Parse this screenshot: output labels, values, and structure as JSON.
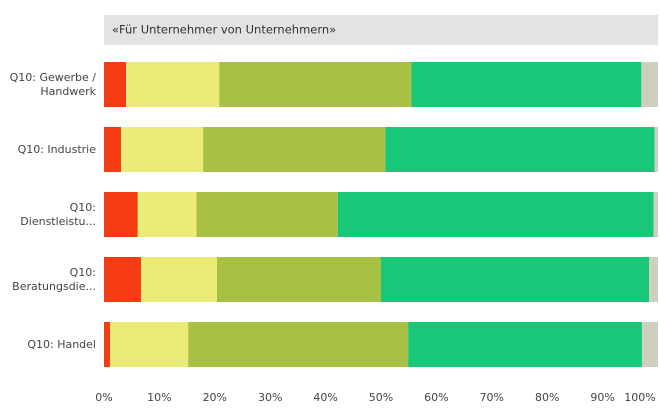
{
  "chart_data": {
    "type": "stacked-bar-horizontal",
    "title": "«Für Unternehmer von Unternehmern»",
    "categories": [
      "Q10: Gewerbe / Handwerk",
      "Q10: Industrie",
      "Q10: Dienstleistu...",
      "Q10: Beratungsdie...",
      "Q10: Handel"
    ],
    "series": [
      {
        "color": "#f53c14",
        "values": [
          4.0,
          3.1,
          6.1,
          6.7,
          1.1
        ]
      },
      {
        "color": "#ebeb78",
        "values": [
          16.8,
          14.8,
          10.6,
          13.7,
          14.1
        ]
      },
      {
        "color": "#a8c043",
        "values": [
          34.7,
          32.9,
          25.5,
          29.6,
          39.7
        ]
      },
      {
        "color": "#18c878",
        "values": [
          41.5,
          48.6,
          57.0,
          48.4,
          42.2
        ]
      },
      {
        "color": "#cfcfc0",
        "values": [
          3.0,
          0.6,
          0.8,
          1.6,
          2.9
        ]
      }
    ],
    "xlim": [
      0,
      100
    ],
    "xticks": [
      {
        "value": 0,
        "label": "0%"
      },
      {
        "value": 10,
        "label": "10%"
      },
      {
        "value": 20,
        "label": "20%"
      },
      {
        "value": 30,
        "label": "30%"
      },
      {
        "value": 40,
        "label": "40%"
      },
      {
        "value": 50,
        "label": "50%"
      },
      {
        "value": 60,
        "label": "60%"
      },
      {
        "value": 70,
        "label": "70%"
      },
      {
        "value": 80,
        "label": "80%"
      },
      {
        "value": 90,
        "label": "90%"
      },
      {
        "value": 100,
        "label": "100%"
      }
    ],
    "grid": false
  }
}
